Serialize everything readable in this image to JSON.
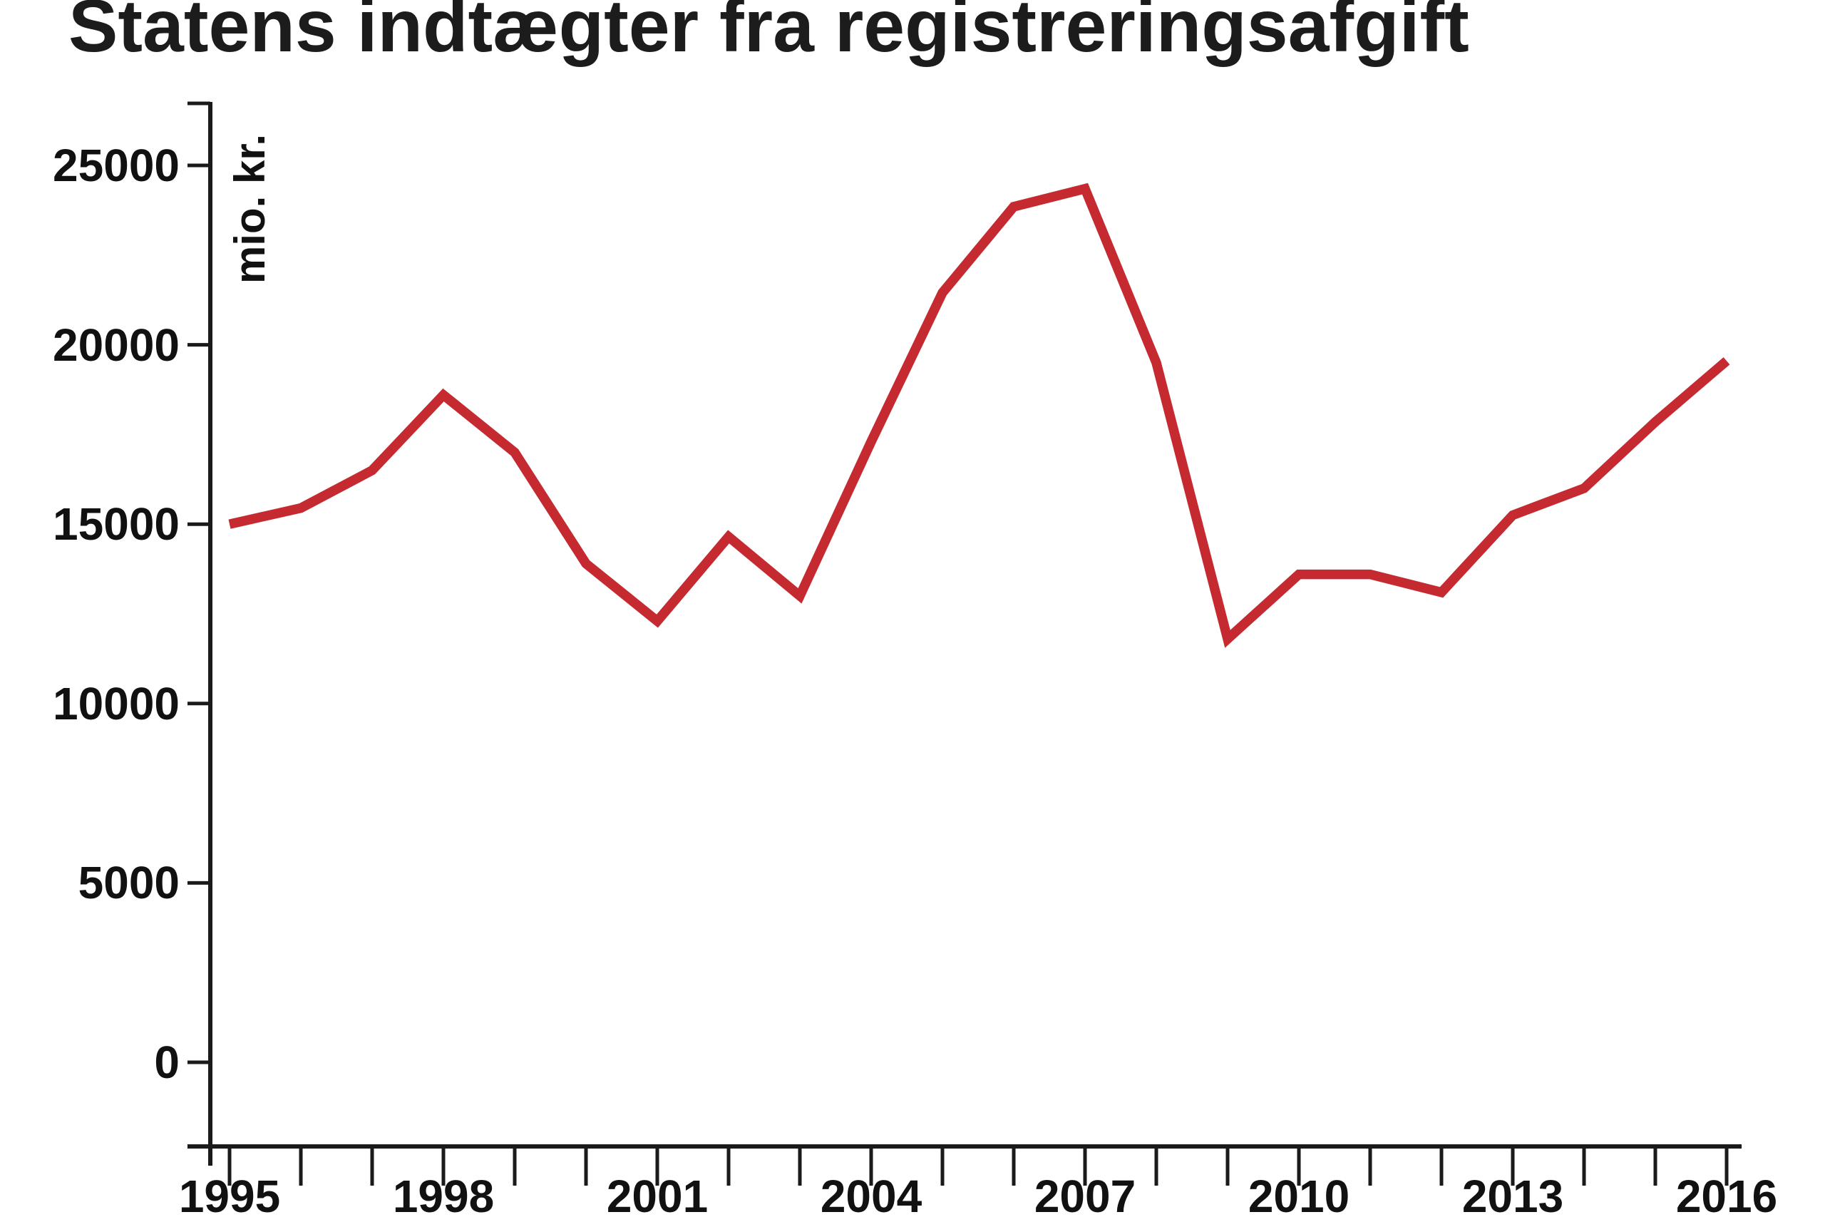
{
  "title": "Statens indtægter fra registreringsafgift",
  "colors": {
    "line": "#c52a30",
    "text": "#111111",
    "axis": "#1a1a1a",
    "background": "#ffffff"
  },
  "y_axis": {
    "unit_label": "mio. kr.",
    "tick_values": [
      25000,
      20000,
      15000,
      10000,
      5000,
      0
    ]
  },
  "x_axis": {
    "labeled_years": [
      1995,
      1998,
      2001,
      2004,
      2007,
      2010,
      2013,
      2016
    ]
  },
  "chart_data": {
    "type": "line",
    "title": "Statens indtægter fra registreringsafgift",
    "xlabel": "",
    "ylabel": "mio. kr.",
    "x": [
      1995,
      1996,
      1997,
      1998,
      1999,
      2000,
      2001,
      2002,
      2003,
      2004,
      2005,
      2006,
      2007,
      2008,
      2009,
      2010,
      2011,
      2012,
      2013,
      2014,
      2015,
      2016
    ],
    "values": [
      15000,
      15450,
      16500,
      18600,
      17000,
      13900,
      12300,
      14650,
      13000,
      17300,
      21450,
      23850,
      24350,
      19500,
      11800,
      13600,
      13600,
      13100,
      15250,
      16000,
      17850,
      19550
    ],
    "series_name": "Statens indtægter fra registreringsafgift (mio. kr.)",
    "xlim": [
      1995,
      2016
    ],
    "ylim": [
      0,
      26800
    ],
    "y_tick_step": 5000,
    "x_minor_tick_step": 1,
    "x_label_step": 3,
    "grid": false,
    "legend_position": "none"
  }
}
